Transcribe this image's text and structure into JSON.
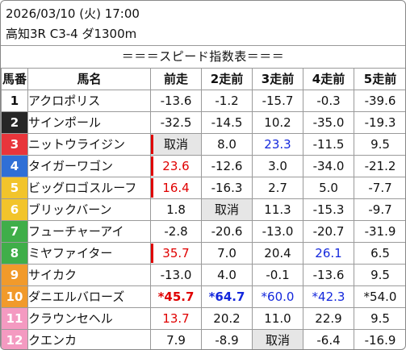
{
  "header": {
    "datetime": "2026/03/10 (火) 17:00",
    "race": "高知3R C3-4 ダ1300m"
  },
  "banner": "＝＝＝スピード指数表＝＝＝",
  "columns": [
    "馬番",
    "馬名",
    "前走",
    "2走前",
    "3走前",
    "4走前",
    "5走前"
  ],
  "colors": {
    "red_value": "#e00000",
    "blue_value": "#1428dc",
    "cancel_shade": "#e6e6e6"
  },
  "rows": [
    {
      "num": "1",
      "bg": "#ffffff",
      "fg": "#111111",
      "name": "アクロポリス",
      "cells": [
        {
          "v": "-13.6"
        },
        {
          "v": "-1.2"
        },
        {
          "v": "-15.7"
        },
        {
          "v": "-0.3"
        },
        {
          "v": "-39.6"
        }
      ]
    },
    {
      "num": "2",
      "bg": "#262626",
      "fg": "#ffffff",
      "name": "サインポール",
      "cells": [
        {
          "v": "-32.5"
        },
        {
          "v": "-14.5"
        },
        {
          "v": "10.2"
        },
        {
          "v": "-35.0"
        },
        {
          "v": "-19.3"
        }
      ]
    },
    {
      "num": "3",
      "bg": "#e8353b",
      "fg": "#ffffff",
      "name": "ニットウライジン",
      "cells": [
        {
          "v": "取消",
          "shade": true,
          "mark": true
        },
        {
          "v": "8.0"
        },
        {
          "v": "23.3",
          "color": "blue"
        },
        {
          "v": "-11.5"
        },
        {
          "v": "9.5"
        }
      ]
    },
    {
      "num": "4",
      "bg": "#2f6fd6",
      "fg": "#ffffff",
      "name": "タイガーワゴン",
      "cells": [
        {
          "v": "23.6",
          "color": "red",
          "mark": true
        },
        {
          "v": "-12.6"
        },
        {
          "v": "3.0"
        },
        {
          "v": "-34.0"
        },
        {
          "v": "-21.2"
        }
      ]
    },
    {
      "num": "5",
      "bg": "#f2c42b",
      "fg": "#ffffff",
      "name": "ビッグロゴスルーフ",
      "cells": [
        {
          "v": "16.4",
          "color": "red",
          "mark": true
        },
        {
          "v": "-16.3"
        },
        {
          "v": "2.7"
        },
        {
          "v": "5.0"
        },
        {
          "v": "-7.7"
        }
      ]
    },
    {
      "num": "6",
      "bg": "#f2c42b",
      "fg": "#ffffff",
      "name": "ブリックバーン",
      "cells": [
        {
          "v": "1.8"
        },
        {
          "v": "取消",
          "shade": true
        },
        {
          "v": "11.3"
        },
        {
          "v": "-15.3"
        },
        {
          "v": "-9.7"
        }
      ]
    },
    {
      "num": "7",
      "bg": "#3fae49",
      "fg": "#ffffff",
      "name": "フューチャーアイ",
      "cells": [
        {
          "v": "-2.8"
        },
        {
          "v": "-20.6"
        },
        {
          "v": "-13.0"
        },
        {
          "v": "-20.7"
        },
        {
          "v": "-31.9"
        }
      ]
    },
    {
      "num": "8",
      "bg": "#3fae49",
      "fg": "#ffffff",
      "name": "ミヤファイター",
      "cells": [
        {
          "v": "35.7",
          "color": "red",
          "mark": true
        },
        {
          "v": "7.0"
        },
        {
          "v": "20.4"
        },
        {
          "v": "26.1",
          "color": "blue"
        },
        {
          "v": "6.5"
        }
      ]
    },
    {
      "num": "9",
      "bg": "#f19a2b",
      "fg": "#ffffff",
      "name": "サイカク",
      "cells": [
        {
          "v": "-13.0"
        },
        {
          "v": "4.0"
        },
        {
          "v": "-0.1"
        },
        {
          "v": "-13.6"
        },
        {
          "v": "9.5"
        }
      ]
    },
    {
      "num": "10",
      "bg": "#f19a2b",
      "fg": "#ffffff",
      "name": "ダニエルバローズ",
      "cells": [
        {
          "v": "*45.7",
          "color": "red",
          "bold": true
        },
        {
          "v": "*64.7",
          "color": "blue",
          "bold": true
        },
        {
          "v": "*60.0",
          "color": "blue"
        },
        {
          "v": "*42.3",
          "color": "blue"
        },
        {
          "v": "*54.0"
        }
      ]
    },
    {
      "num": "11",
      "bg": "#f49ac1",
      "fg": "#ffffff",
      "name": "クラウンセヘル",
      "cells": [
        {
          "v": "13.7",
          "color": "red"
        },
        {
          "v": "20.2"
        },
        {
          "v": "11.0"
        },
        {
          "v": "22.9"
        },
        {
          "v": "9.5"
        }
      ]
    },
    {
      "num": "12",
      "bg": "#f49ac1",
      "fg": "#ffffff",
      "name": "クエンカ",
      "cells": [
        {
          "v": "7.9"
        },
        {
          "v": "-8.9"
        },
        {
          "v": "取消",
          "shade": true
        },
        {
          "v": "-6.4"
        },
        {
          "v": "-16.9"
        }
      ]
    }
  ]
}
